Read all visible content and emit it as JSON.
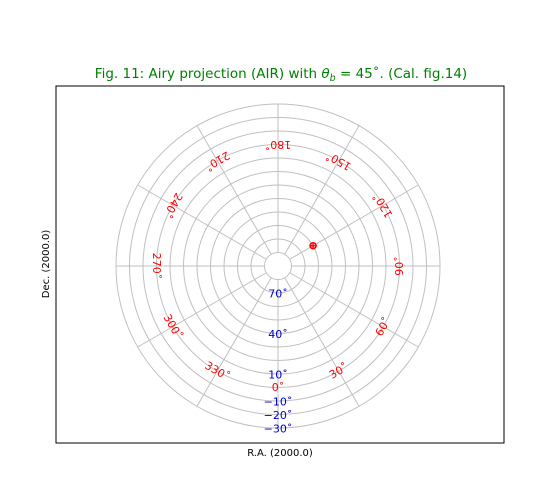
{
  "figure": {
    "title_prefix": "Fig. 11: Airy projection (AIR) with ",
    "title_theta": "θ",
    "title_sub": "b",
    "title_suffix": " = 45˚. (Cal. fig.14)",
    "xlabel": "R.A. (2000.0)",
    "ylabel": "Dec. (2000.0)"
  },
  "colors": {
    "title": "#008000",
    "ra_labels": "#ff0000",
    "dec_labels": "#0000cc",
    "grid": "#c0c0c0",
    "marker": "#ff0000"
  },
  "chart_data": {
    "type": "sky-projection-graticule",
    "projection": "AIR",
    "theta_b_deg": 45,
    "ra_meridians_deg": [
      0,
      30,
      60,
      90,
      120,
      150,
      180,
      210,
      240,
      270,
      300,
      330
    ],
    "dec_parallels_deg": [
      80,
      70,
      60,
      50,
      40,
      30,
      20,
      10,
      0,
      -10,
      -20,
      -30
    ],
    "ra_labels": [
      {
        "ra": 0,
        "text": "0˚"
      },
      {
        "ra": 30,
        "text": "30˚"
      },
      {
        "ra": 60,
        "text": "60˚"
      },
      {
        "ra": 90,
        "text": "90˚"
      },
      {
        "ra": 120,
        "text": "120˚"
      },
      {
        "ra": 150,
        "text": "150˚"
      },
      {
        "ra": 180,
        "text": "180˚"
      },
      {
        "ra": 210,
        "text": "210˚"
      },
      {
        "ra": 240,
        "text": "240˚"
      },
      {
        "ra": 270,
        "text": "270˚"
      },
      {
        "ra": 300,
        "text": "300˚"
      },
      {
        "ra": 330,
        "text": "330˚"
      }
    ],
    "dec_labels": [
      {
        "dec": 70,
        "text": "70˚"
      },
      {
        "dec": 40,
        "text": "40˚"
      },
      {
        "dec": 10,
        "text": "10˚"
      },
      {
        "dec": -10,
        "text": "−10˚"
      },
      {
        "dec": -20,
        "text": "−20˚"
      },
      {
        "dec": -30,
        "text": "−30˚"
      }
    ],
    "marker": {
      "ra": 120,
      "dec": 60
    },
    "grid": true
  }
}
